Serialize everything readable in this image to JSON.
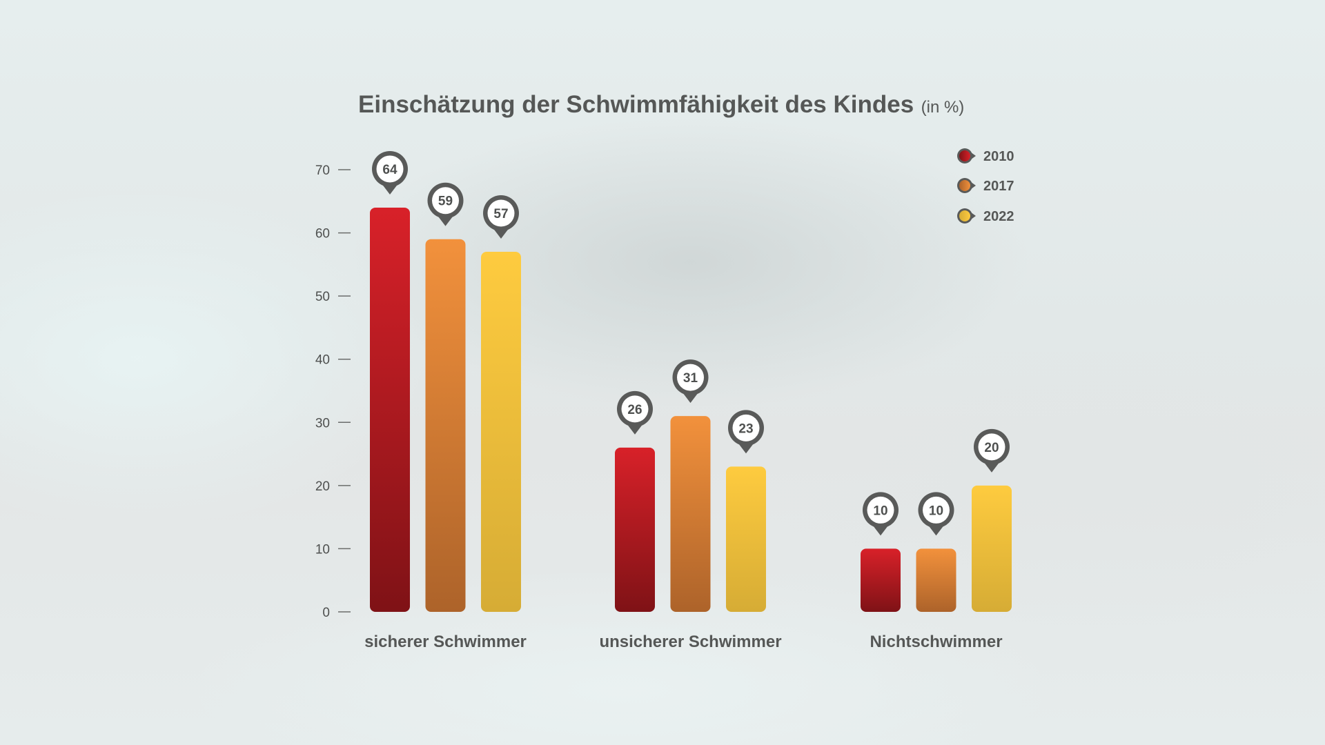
{
  "chart_data": {
    "type": "bar",
    "title": "Einschätzung der Schwimmfähigkeit des Kindes",
    "subtitle": "(in %)",
    "xlabel": "",
    "ylabel": "",
    "ylim": [
      0,
      70
    ],
    "yticks": [
      0,
      10,
      20,
      30,
      40,
      50,
      60,
      70
    ],
    "grid": false,
    "legend_position": "top-right",
    "categories": [
      "sicherer Schwimmer",
      "unsicherer Schwimmer",
      "Nichtschwimmer"
    ],
    "series": [
      {
        "name": "2010",
        "values": [
          64,
          26,
          10
        ],
        "color_top": "#d82129",
        "color_bottom": "#7f1216"
      },
      {
        "name": "2017",
        "values": [
          59,
          31,
          10
        ],
        "color_top": "#f2913c",
        "color_bottom": "#ad632a"
      },
      {
        "name": "2022",
        "values": [
          57,
          23,
          20
        ],
        "color_top": "#fecb3f",
        "color_bottom": "#d6ac35"
      }
    ],
    "data_labels": true
  }
}
